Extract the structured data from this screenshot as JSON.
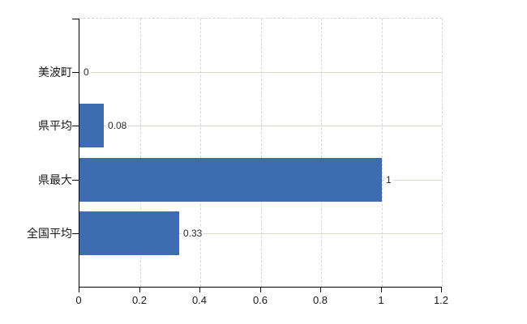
{
  "chart_data": {
    "type": "bar",
    "orientation": "horizontal",
    "title": "",
    "categories": [
      "美波町",
      "県平均",
      "県最大",
      "全国平均"
    ],
    "values": [
      0,
      0.08,
      1,
      0.33
    ],
    "value_labels": [
      "0",
      "0.08",
      "1",
      "0.33"
    ],
    "xlabel": "",
    "ylabel": "",
    "xlim": [
      0,
      1.2
    ],
    "xticks": {
      "values": [
        0,
        0.2,
        0.4,
        0.6,
        0.8,
        1,
        1.2
      ],
      "labels": [
        "0",
        "0.2",
        "0.4",
        "0.6",
        "0.8",
        "1",
        "1.2"
      ]
    },
    "grid": "on",
    "legend": "none",
    "colors": {
      "bar": "#3e6cb0",
      "axis": "#000000",
      "grid_horizontal": "#d2dbce",
      "grid_vertical_dashed": "#d8d4db",
      "text": "#1a1a1a",
      "background": "#ffffff"
    }
  }
}
